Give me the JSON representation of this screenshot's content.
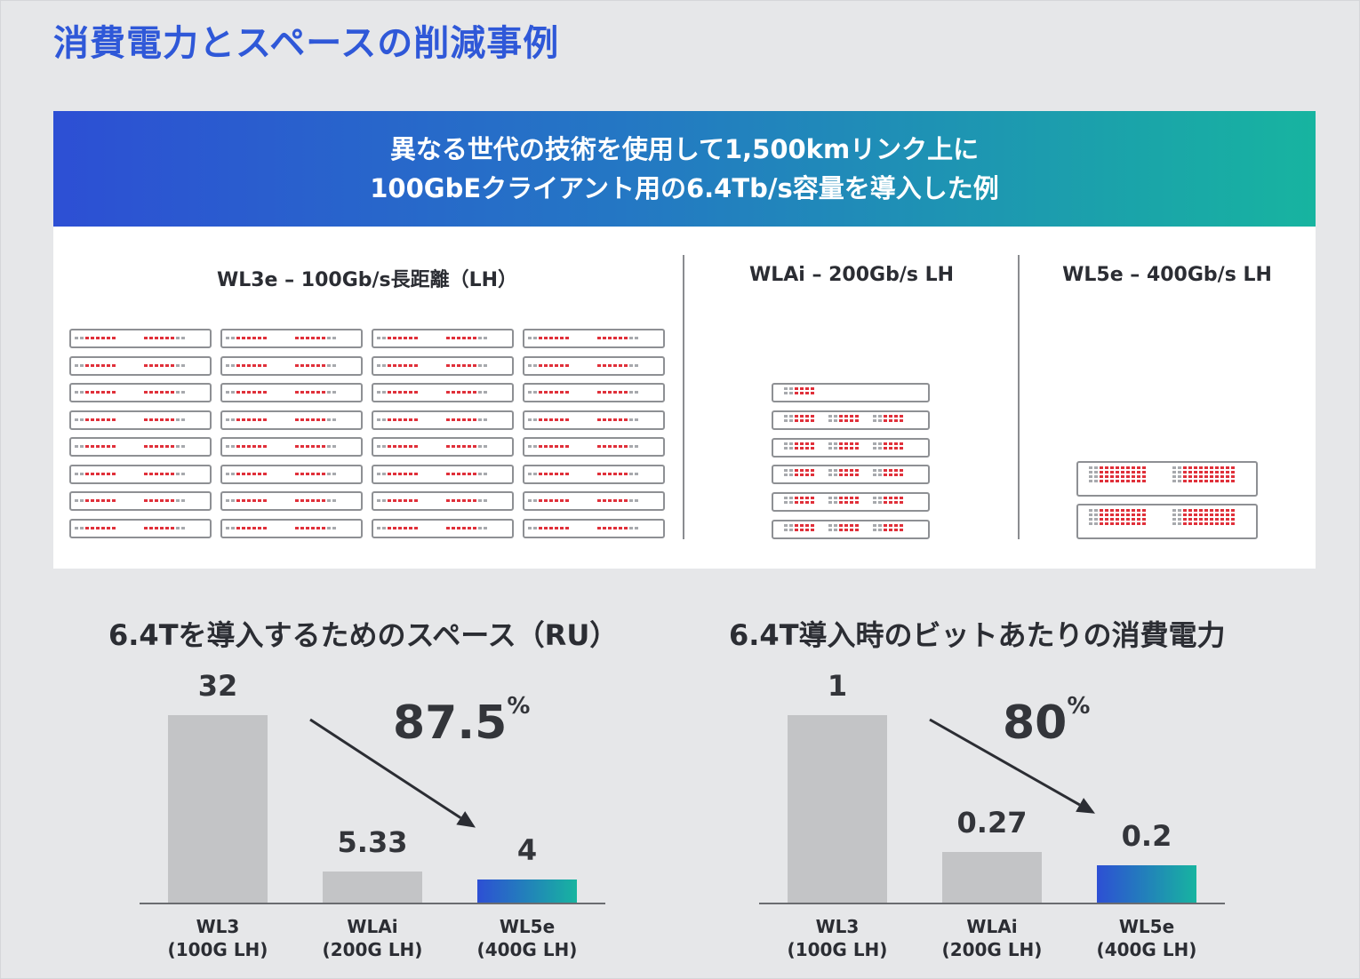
{
  "title": "消費電力とスペースの削減事例",
  "banner": {
    "line1": "異なる世代の技術を使用して1,500kmリンク上に",
    "line2": "100GbEクライアント用の6.4Tb/s容量を導入した例"
  },
  "deployments": [
    {
      "label": "WL3e – 100Gb/s長距離（LH）",
      "icon": "1ru-chassis-stack",
      "rows": 8,
      "cols": 4
    },
    {
      "label": "WLAi – 200Gb/s LH",
      "icon": "1ru-chassis-stack",
      "rows": 6,
      "cols": 1
    },
    {
      "label": "WL5e – 400Gb/s LH",
      "icon": "2ru-chassis-stack",
      "rows": 2,
      "cols": 1
    }
  ],
  "colors": {
    "title": "#2f58d8",
    "gradient_start": "#2d4fd4",
    "gradient_end": "#17b4a0",
    "bar_grey": "#c3c4c6",
    "led_red": "#e0303a"
  },
  "chart_data": [
    {
      "type": "bar",
      "title": "6.4Tを導入するためのスペース（RU）",
      "categories": [
        "WL3\n(100G LH)",
        "WLAi\n(200G LH)",
        "WL5e\n(400G LH)"
      ],
      "category_lines": [
        [
          "WL3",
          "(100G LH)"
        ],
        [
          "WLAi",
          "(200G LH)"
        ],
        [
          "WL5e",
          "(400G LH)"
        ]
      ],
      "values": [
        32,
        5.33,
        4
      ],
      "value_labels": [
        "32",
        "5.33",
        "4"
      ],
      "highlight_index": 2,
      "reduction": {
        "value": "87.5",
        "unit": "%"
      },
      "ylim": [
        0,
        32
      ]
    },
    {
      "type": "bar",
      "title": "6.4T導入時のビットあたりの消費電力",
      "categories": [
        "WL3\n(100G LH)",
        "WLAi\n(200G LH)",
        "WL5e\n(400G LH)"
      ],
      "category_lines": [
        [
          "WL3",
          "(100G LH)"
        ],
        [
          "WLAi",
          "(200G LH)"
        ],
        [
          "WL5e",
          "(400G LH)"
        ]
      ],
      "values": [
        1,
        0.27,
        0.2
      ],
      "value_labels": [
        "1",
        "0.27",
        "0.2"
      ],
      "highlight_index": 2,
      "reduction": {
        "value": "80",
        "unit": "%"
      },
      "ylim": [
        0,
        1
      ]
    }
  ]
}
